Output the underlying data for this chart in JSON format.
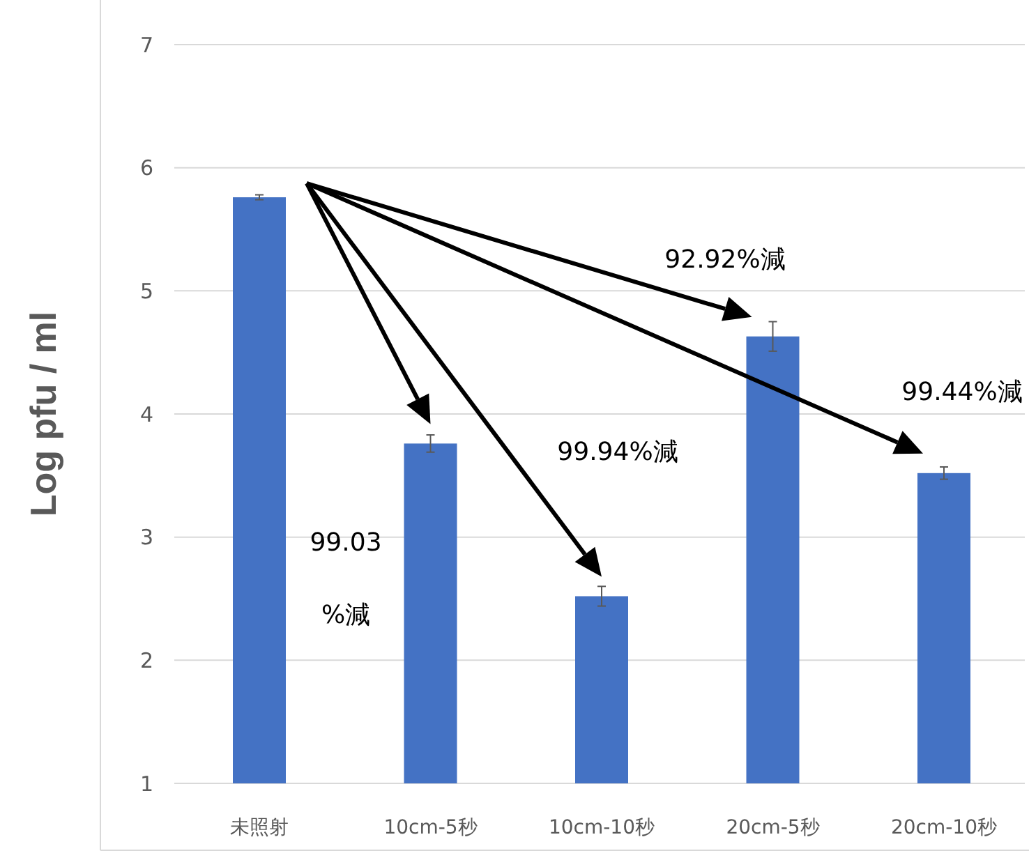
{
  "chart_data": {
    "type": "bar",
    "ylabel": "Log pfu / ml",
    "categories": [
      "未照射",
      "10cm-5秒",
      "10cm-10秒",
      "20cm-5秒",
      "20cm-10秒"
    ],
    "values": [
      5.76,
      3.76,
      2.52,
      4.63,
      3.52
    ],
    "errors": [
      0.02,
      0.07,
      0.08,
      0.12,
      0.05
    ],
    "color": "#4472c4",
    "ylim": [
      1,
      7
    ],
    "yticks": [
      1,
      2,
      3,
      4,
      5,
      6,
      7
    ],
    "grid": "y",
    "annotations": [
      "99.03\n%減",
      "99.94%減",
      "92.92%減",
      "99.44%減"
    ]
  }
}
